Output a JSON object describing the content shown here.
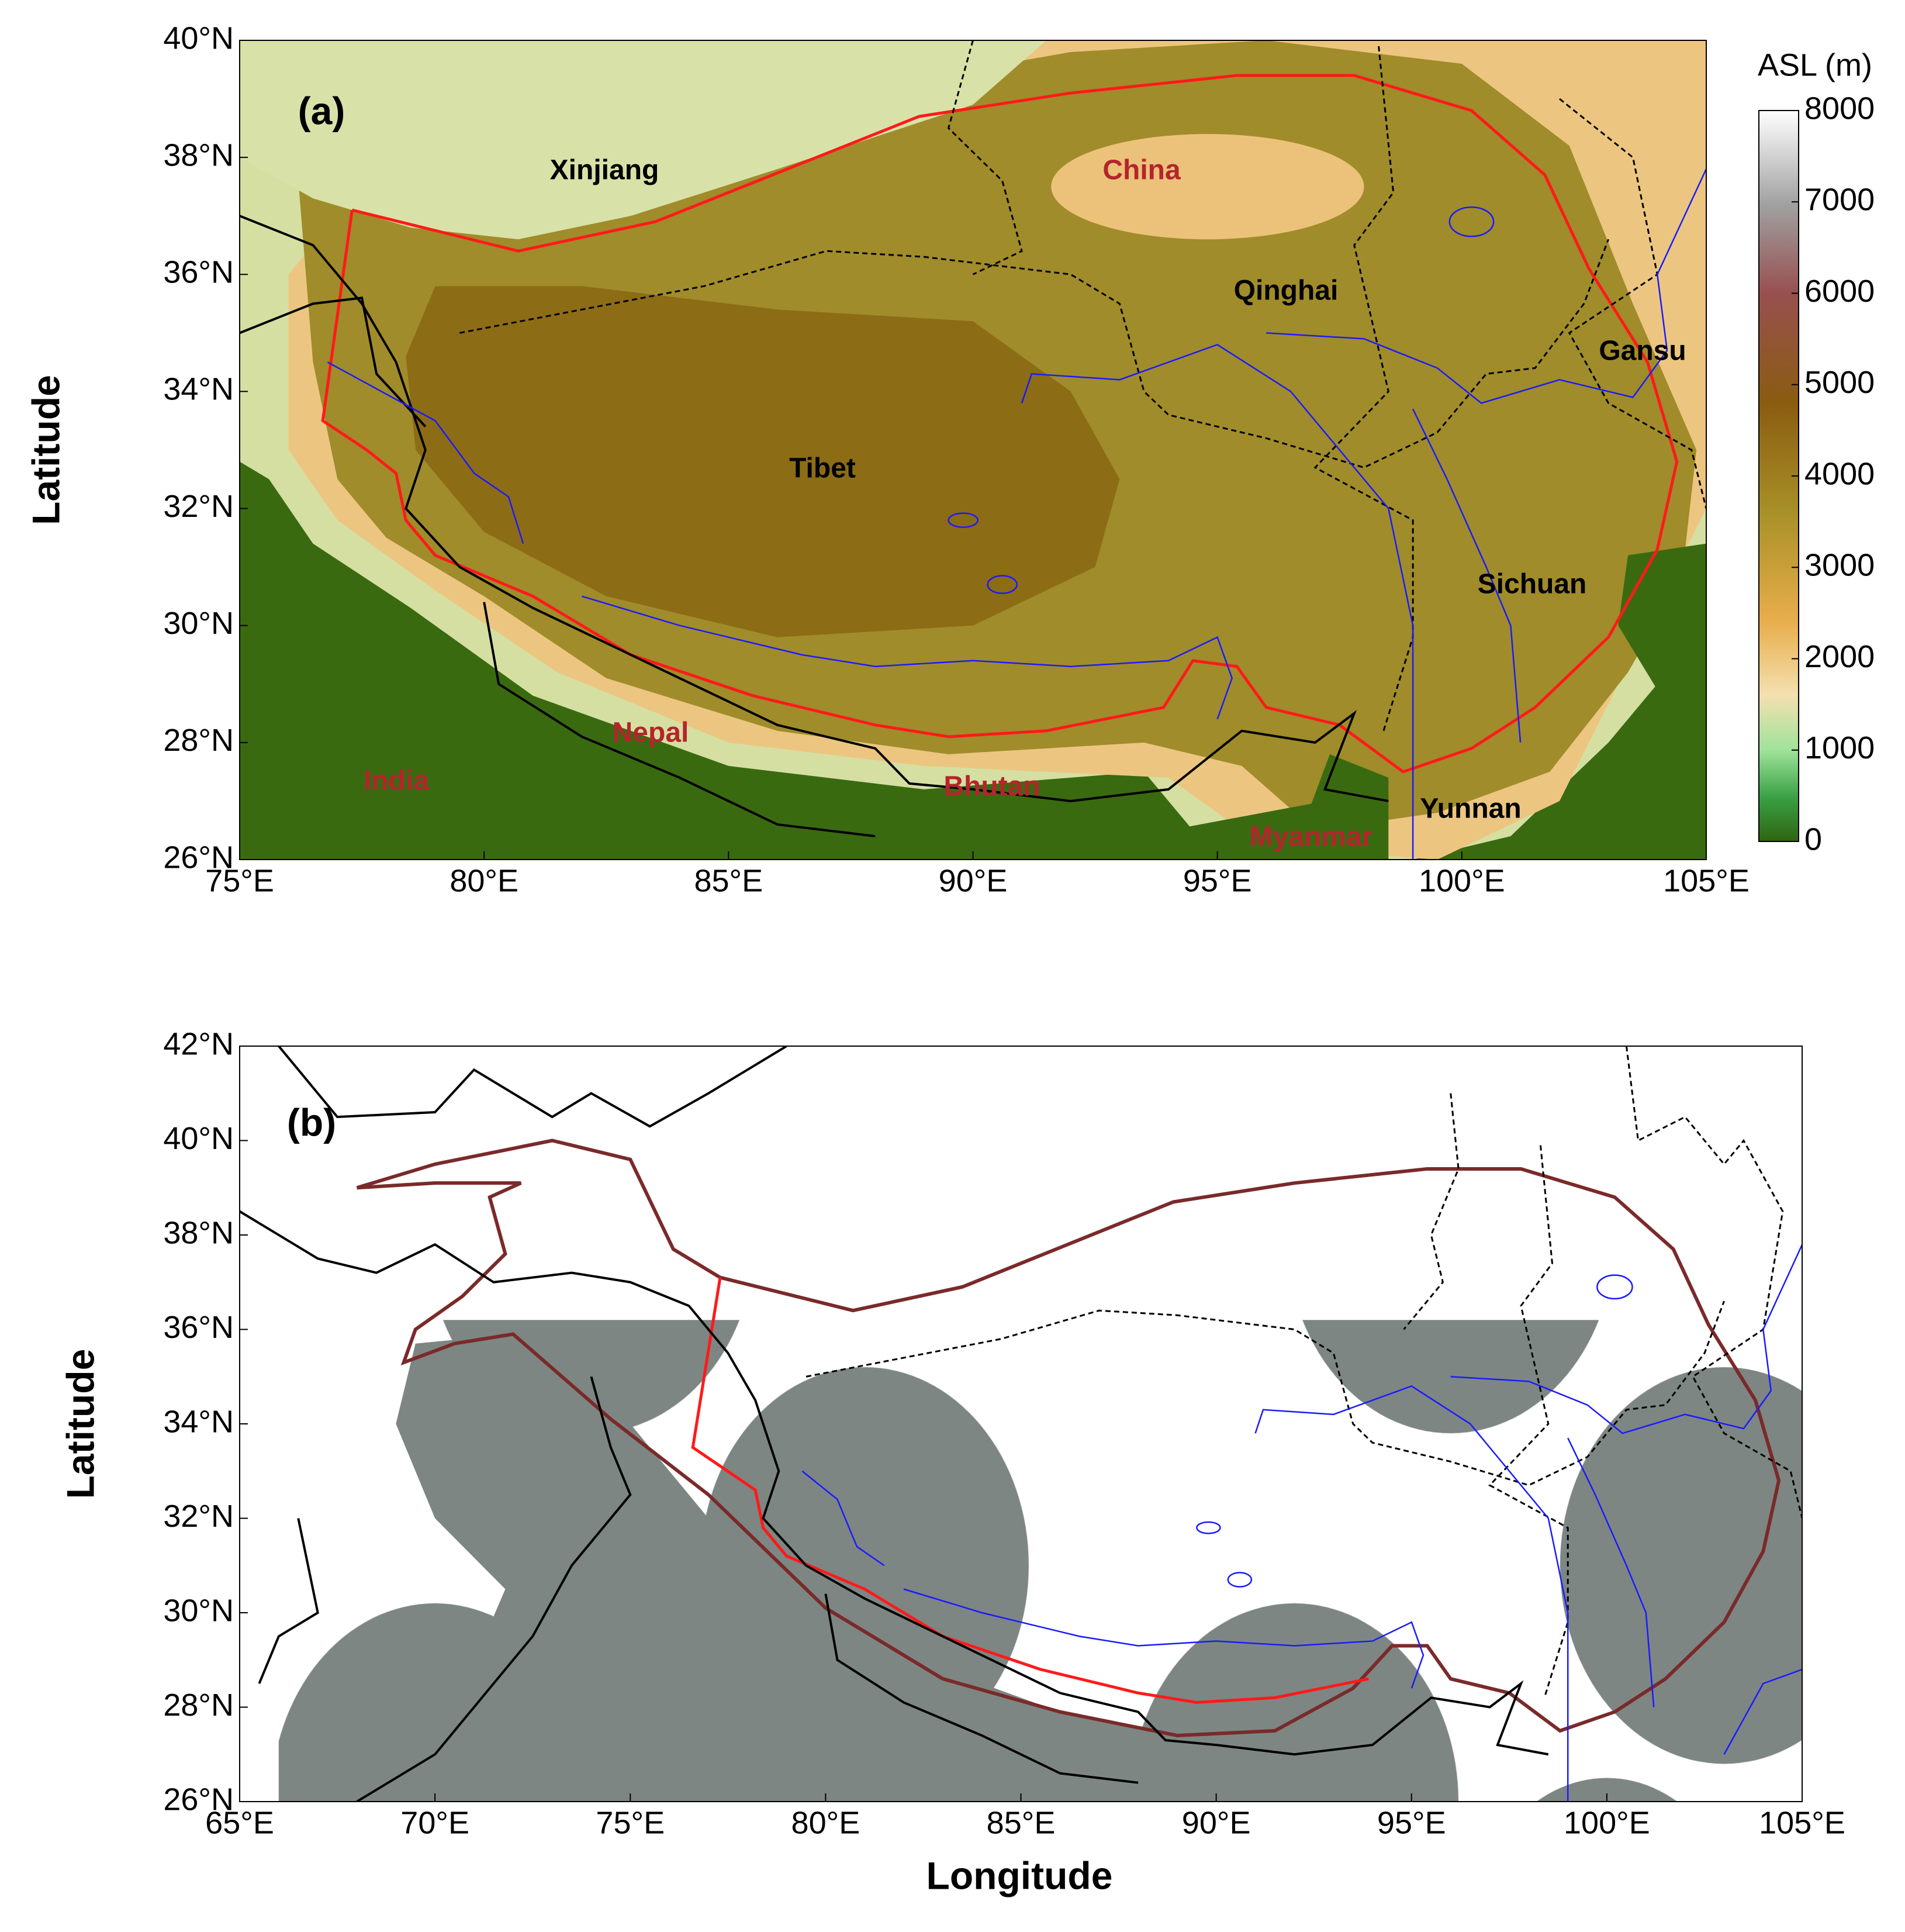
{
  "panels": [
    {
      "label": "(a)",
      "y_axis_label": "Latitude",
      "yticks": [
        "40°N",
        "38°N",
        "36°N",
        "34°N",
        "32°N",
        "30°N",
        "28°N",
        "26°N"
      ],
      "xticks": [
        "75°E",
        "80°E",
        "85°E",
        "90°E",
        "95°E",
        "100°E",
        "105°E"
      ],
      "places": [
        "Xinjiang",
        "China",
        "Qinghai",
        "Gansu",
        "Tibet",
        "Sichuan",
        "Nepal",
        "India",
        "Bhutan",
        "Yunnan",
        "Myanmar"
      ]
    },
    {
      "label": "(b)",
      "y_axis_label": "Latitude",
      "yticks": [
        "42°N",
        "40°N",
        "38°N",
        "36°N",
        "34°N",
        "32°N",
        "30°N",
        "28°N",
        "26°N"
      ],
      "xticks": [
        "65°E",
        "70°E",
        "75°E",
        "80°E",
        "85°E",
        "90°E",
        "95°E",
        "100°E",
        "105°E"
      ]
    }
  ],
  "colorbar": {
    "title": "ASL (m)",
    "ticks": [
      8000,
      7000,
      6000,
      5000,
      4000,
      3000,
      2000,
      1000,
      0
    ]
  },
  "x_axis_label": "Longitude"
}
